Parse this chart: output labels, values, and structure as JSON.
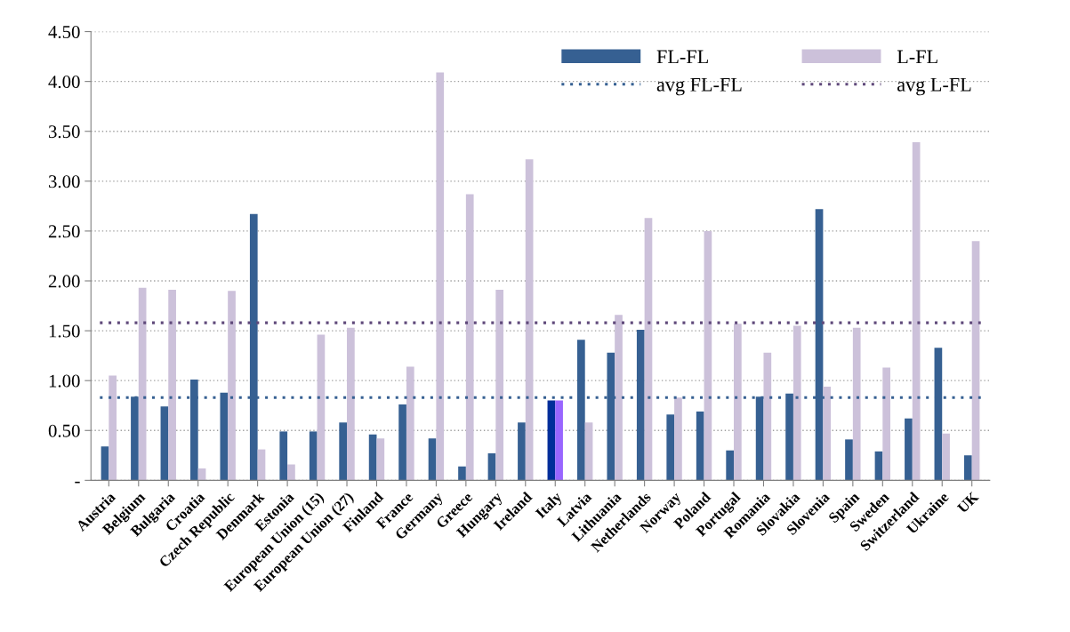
{
  "chart_data": {
    "type": "bar",
    "categories": [
      "Austria",
      "Belgium",
      "Bulgaria",
      "Croatia",
      "Czech Republic",
      "Denmark",
      "Estonia",
      "European Union (15)",
      "European Union (27)",
      "Finland",
      "France",
      "Germany",
      "Greece",
      "Hungary",
      "Ireland",
      "Italy",
      "Latvia",
      "Lithuania",
      "Netherlands",
      "Norway",
      "Poland",
      "Portugal",
      "Romania",
      "Slovakia",
      "Slovenia",
      "Spain",
      "Sweden",
      "Switzerland",
      "Ukraine",
      "UK"
    ],
    "series": [
      {
        "name": "FL-FL",
        "color": "#366092",
        "colors": [
          "#366092",
          "#366092",
          "#366092",
          "#366092",
          "#366092",
          "#366092",
          "#366092",
          "#366092",
          "#366092",
          "#366092",
          "#366092",
          "#366092",
          "#366092",
          "#366092",
          "#366092",
          "#002e9a",
          "#366092",
          "#366092",
          "#366092",
          "#366092",
          "#366092",
          "#366092",
          "#366092",
          "#366092",
          "#366092",
          "#366092",
          "#366092",
          "#366092",
          "#366092",
          "#366092"
        ],
        "values": [
          0.34,
          0.84,
          0.74,
          1.01,
          0.88,
          2.67,
          0.49,
          0.49,
          0.58,
          0.46,
          0.76,
          0.42,
          0.14,
          0.27,
          0.58,
          0.8,
          1.41,
          1.28,
          1.51,
          0.66,
          0.69,
          0.3,
          0.84,
          0.87,
          2.72,
          0.41,
          0.29,
          0.62,
          1.33,
          0.25
        ]
      },
      {
        "name": "L-FL",
        "color": "#ccc1da",
        "colors": [
          "#ccc1da",
          "#ccc1da",
          "#ccc1da",
          "#ccc1da",
          "#ccc1da",
          "#ccc1da",
          "#ccc1da",
          "#ccc1da",
          "#ccc1da",
          "#ccc1da",
          "#ccc1da",
          "#ccc1da",
          "#ccc1da",
          "#ccc1da",
          "#ccc1da",
          "#9966ff",
          "#ccc1da",
          "#ccc1da",
          "#ccc1da",
          "#ccc1da",
          "#ccc1da",
          "#ccc1da",
          "#ccc1da",
          "#ccc1da",
          "#ccc1da",
          "#ccc1da",
          "#ccc1da",
          "#ccc1da",
          "#ccc1da",
          "#ccc1da"
        ],
        "values": [
          1.05,
          1.93,
          1.91,
          0.12,
          1.9,
          0.31,
          0.16,
          1.46,
          1.53,
          0.42,
          1.14,
          4.09,
          2.87,
          1.91,
          3.22,
          0.8,
          0.58,
          1.66,
          2.63,
          0.83,
          2.5,
          1.57,
          1.28,
          1.55,
          0.94,
          1.53,
          1.13,
          3.39,
          0.47,
          2.4
        ]
      }
    ],
    "ref_lines": [
      {
        "axis": "y",
        "value": 0.83,
        "label": "avg FL-FL",
        "color": "#366092",
        "line_style": "dotted"
      },
      {
        "axis": "y",
        "value": 1.58,
        "label": "avg L-FL",
        "color": "#604a7b",
        "line_style": "dotted"
      }
    ],
    "ylim": [
      0,
      4.5
    ],
    "yticks": [
      {
        "value": 0,
        "label": "-"
      },
      {
        "value": 0.5,
        "label": "0.50"
      },
      {
        "value": 1.0,
        "label": "1.00"
      },
      {
        "value": 1.5,
        "label": "1.50"
      },
      {
        "value": 2.0,
        "label": "2.00"
      },
      {
        "value": 2.5,
        "label": "2.50"
      },
      {
        "value": 3.0,
        "label": "3.00"
      },
      {
        "value": 3.5,
        "label": "3.50"
      },
      {
        "value": 4.0,
        "label": "4.00"
      },
      {
        "value": 4.5,
        "label": "4.50"
      }
    ],
    "grid": "y",
    "legend": "top right"
  }
}
